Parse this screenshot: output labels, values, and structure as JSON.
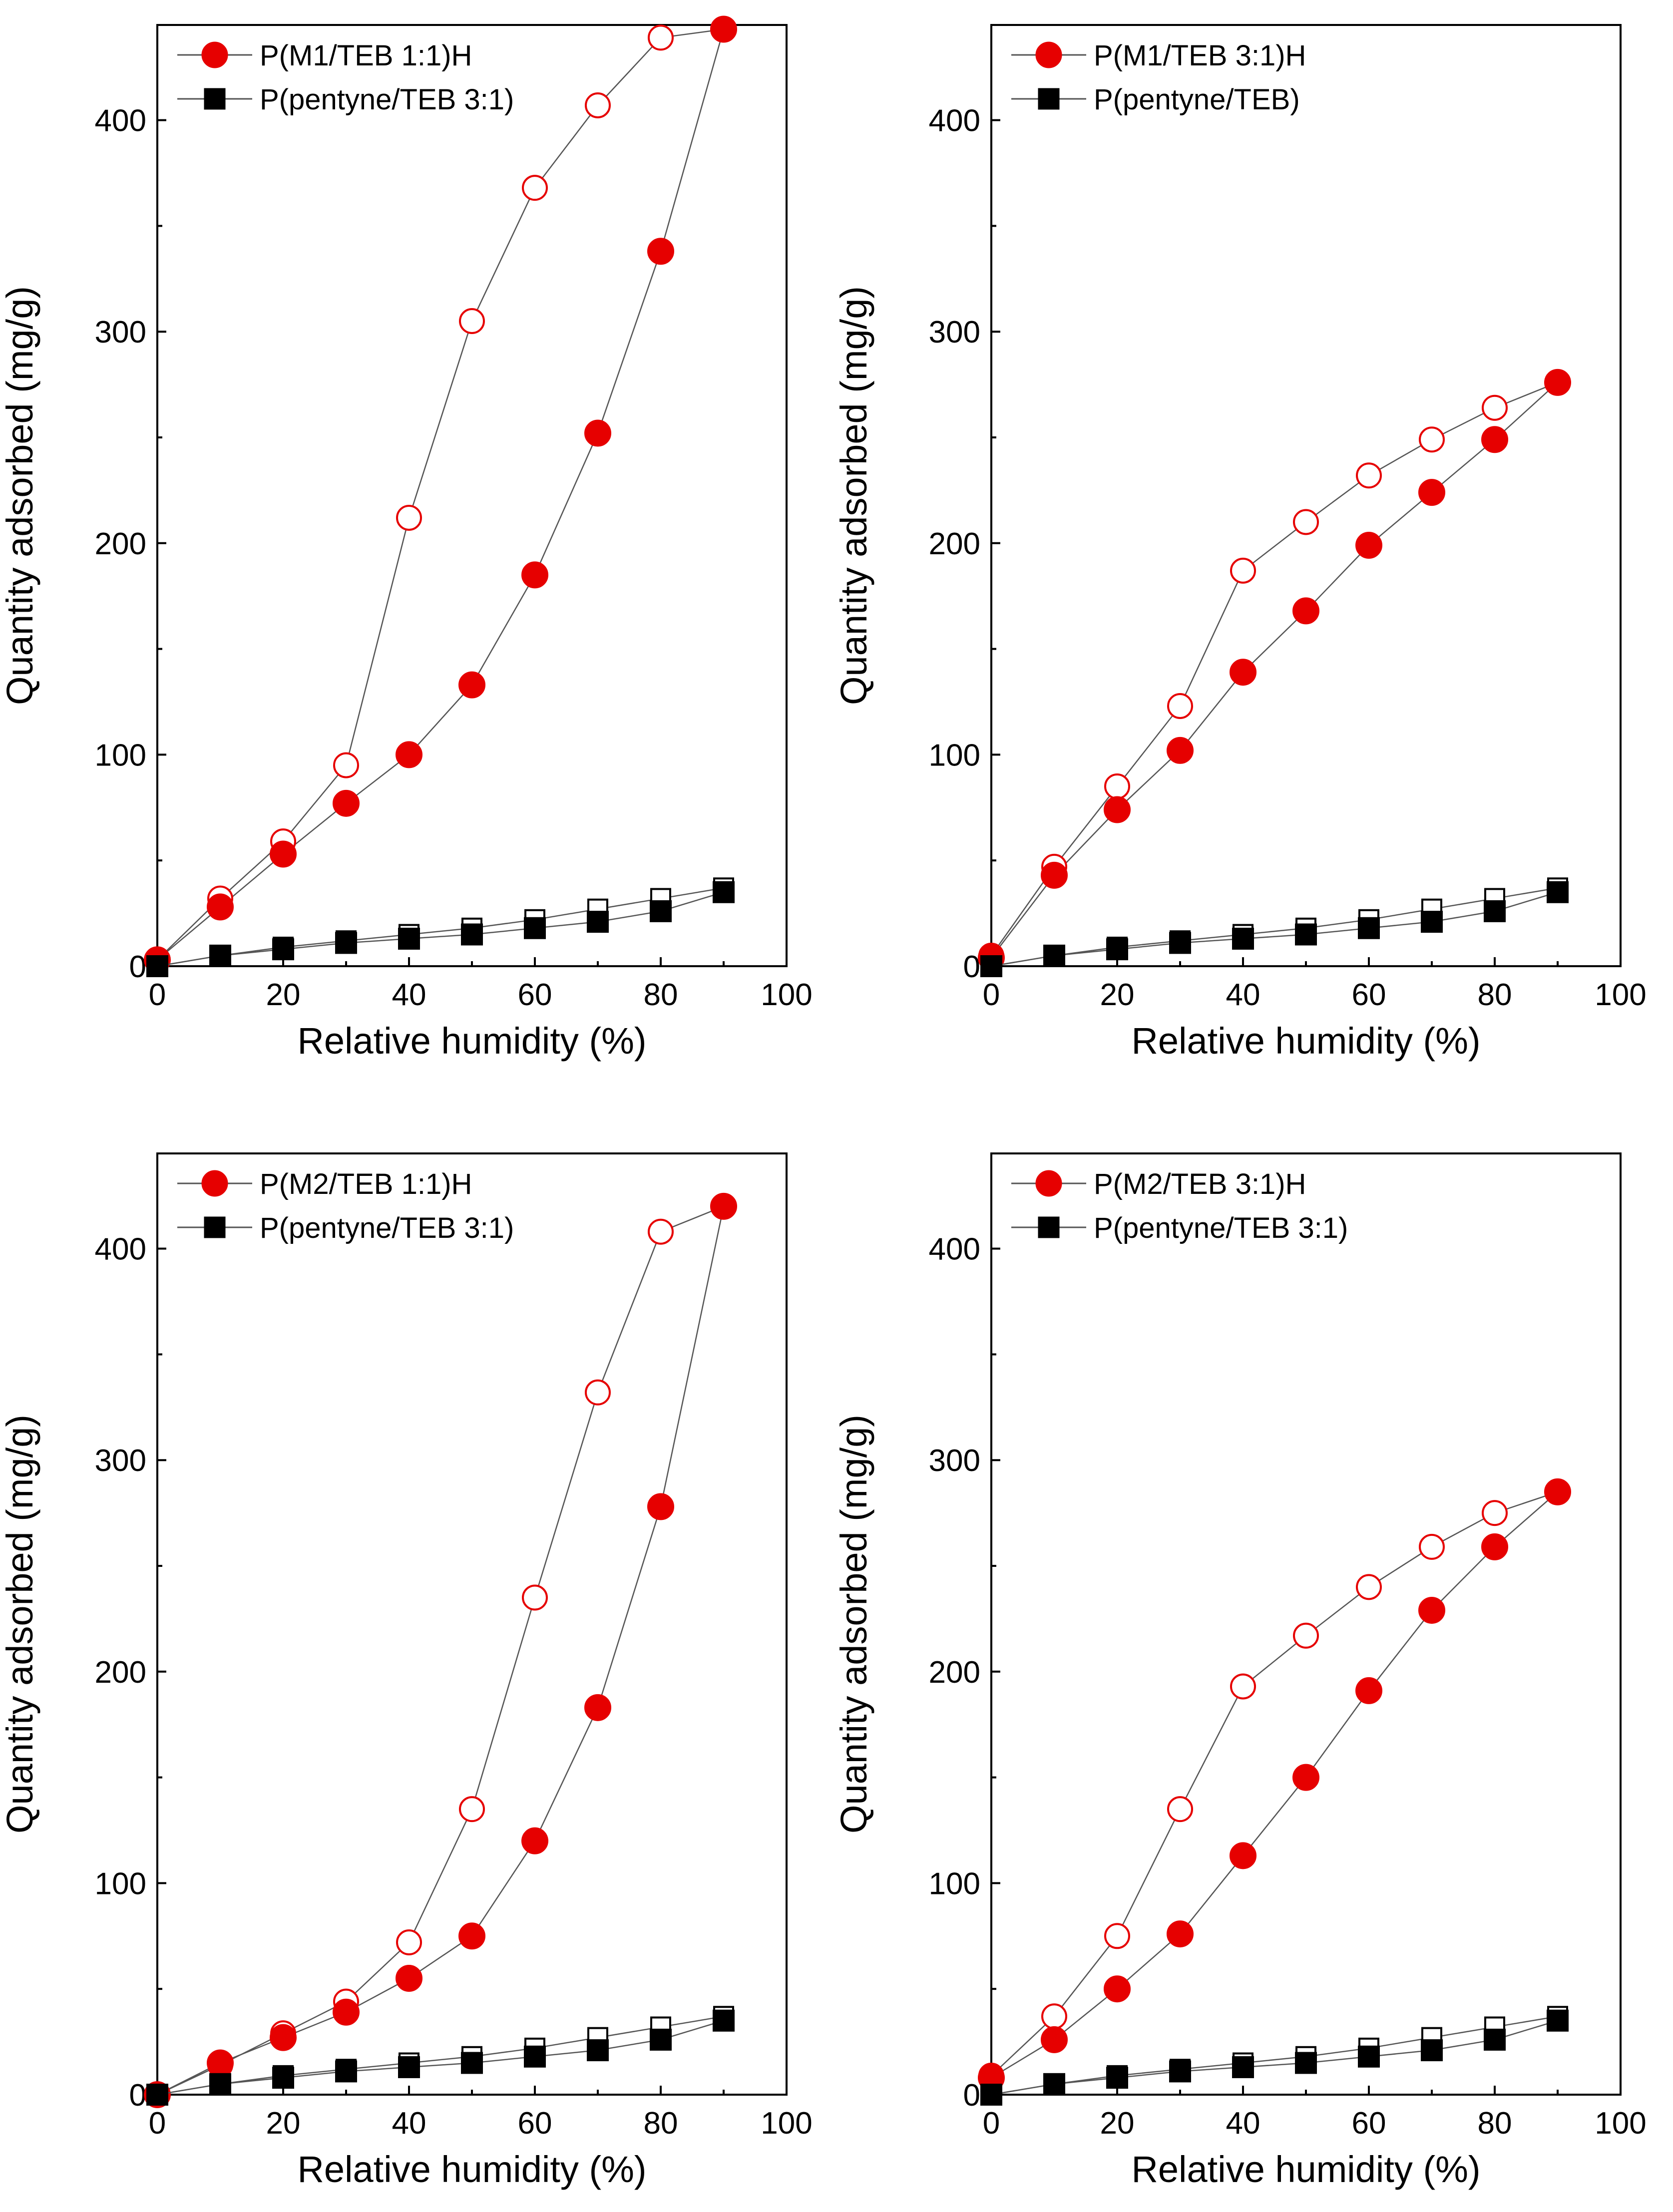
{
  "chart_data": [
    {
      "type": "scatter",
      "xlabel": "Relative humidity (%)",
      "ylabel": "Quantity adsorbed (mg/g)",
      "xlim": [
        0,
        100
      ],
      "ylim": [
        0,
        445
      ],
      "xticks": [
        0,
        20,
        40,
        60,
        80,
        100
      ],
      "yticks": [
        0,
        100,
        200,
        300,
        400
      ],
      "legend_position": "top-left",
      "series": [
        {
          "name": "P(M1/TEB 1:1)H",
          "marker": "circle",
          "color": "#e60000",
          "adsorption": {
            "x": [
              0,
              10,
              20,
              30,
              40,
              50,
              60,
              70,
              80,
              90
            ],
            "y": [
              3,
              28,
              53,
              77,
              100,
              133,
              185,
              252,
              338,
              443
            ]
          },
          "desorption": {
            "x": [
              0,
              10,
              20,
              30,
              40,
              50,
              60,
              70,
              80,
              90
            ],
            "y": [
              3,
              32,
              59,
              95,
              212,
              305,
              368,
              407,
              439,
              443
            ]
          }
        },
        {
          "name": "P(pentyne/TEB 3:1)",
          "marker": "square",
          "color": "#000000",
          "adsorption": {
            "x": [
              0,
              10,
              20,
              30,
              40,
              50,
              60,
              70,
              80,
              90
            ],
            "y": [
              0,
              5,
              8,
              11,
              13,
              15,
              18,
              21,
              26,
              35
            ]
          },
          "desorption": {
            "x": [
              0,
              10,
              20,
              30,
              40,
              50,
              60,
              70,
              80,
              90
            ],
            "y": [
              0,
              5,
              9,
              12,
              15,
              18,
              22,
              27,
              32,
              37
            ]
          }
        }
      ]
    },
    {
      "type": "scatter",
      "xlabel": "Relative humidity (%)",
      "ylabel": "Quantity adsorbed (mg/g)",
      "xlim": [
        0,
        100
      ],
      "ylim": [
        0,
        445
      ],
      "xticks": [
        0,
        20,
        40,
        60,
        80,
        100
      ],
      "yticks": [
        0,
        100,
        200,
        300,
        400
      ],
      "legend_position": "top-left",
      "series": [
        {
          "name": "P(M1/TEB 3:1)H",
          "marker": "circle",
          "color": "#e60000",
          "adsorption": {
            "x": [
              0,
              10,
              20,
              30,
              40,
              50,
              60,
              70,
              80,
              90
            ],
            "y": [
              4,
              43,
              74,
              102,
              139,
              168,
              199,
              224,
              249,
              276
            ]
          },
          "desorption": {
            "x": [
              0,
              10,
              20,
              30,
              40,
              50,
              60,
              70,
              80,
              90
            ],
            "y": [
              5,
              47,
              85,
              123,
              187,
              210,
              232,
              249,
              264,
              276
            ]
          }
        },
        {
          "name": "P(pentyne/TEB)",
          "marker": "square",
          "color": "#000000",
          "adsorption": {
            "x": [
              0,
              10,
              20,
              30,
              40,
              50,
              60,
              70,
              80,
              90
            ],
            "y": [
              0,
              5,
              8,
              11,
              13,
              15,
              18,
              21,
              26,
              35
            ]
          },
          "desorption": {
            "x": [
              0,
              10,
              20,
              30,
              40,
              50,
              60,
              70,
              80,
              90
            ],
            "y": [
              0,
              5,
              9,
              12,
              15,
              18,
              22,
              27,
              32,
              37
            ]
          }
        }
      ]
    },
    {
      "type": "scatter",
      "xlabel": "Relative humidity (%)",
      "ylabel": "Quantity adsorbed (mg/g)",
      "xlim": [
        0,
        100
      ],
      "ylim": [
        0,
        445
      ],
      "xticks": [
        0,
        20,
        40,
        60,
        80,
        100
      ],
      "yticks": [
        0,
        100,
        200,
        300,
        400
      ],
      "legend_position": "top-left",
      "series": [
        {
          "name": "P(M2/TEB 1:1)H",
          "marker": "circle",
          "color": "#e60000",
          "adsorption": {
            "x": [
              0,
              10,
              20,
              30,
              40,
              50,
              60,
              70,
              80,
              90
            ],
            "y": [
              0,
              15,
              27,
              39,
              55,
              75,
              120,
              183,
              278,
              420
            ]
          },
          "desorption": {
            "x": [
              0,
              10,
              20,
              30,
              40,
              50,
              60,
              70,
              80,
              90
            ],
            "y": [
              0,
              14,
              29,
              44,
              72,
              135,
              235,
              332,
              408,
              420
            ]
          }
        },
        {
          "name": "P(pentyne/TEB 3:1)",
          "marker": "square",
          "color": "#000000",
          "adsorption": {
            "x": [
              0,
              10,
              20,
              30,
              40,
              50,
              60,
              70,
              80,
              90
            ],
            "y": [
              0,
              5,
              8,
              11,
              13,
              15,
              18,
              21,
              26,
              35
            ]
          },
          "desorption": {
            "x": [
              0,
              10,
              20,
              30,
              40,
              50,
              60,
              70,
              80,
              90
            ],
            "y": [
              0,
              5,
              9,
              12,
              15,
              18,
              22,
              27,
              32,
              37
            ]
          }
        }
      ]
    },
    {
      "type": "scatter",
      "xlabel": "Relative humidity (%)",
      "ylabel": "Quantity adsorbed (mg/g)",
      "xlim": [
        0,
        100
      ],
      "ylim": [
        0,
        445
      ],
      "xticks": [
        0,
        20,
        40,
        60,
        80,
        100
      ],
      "yticks": [
        0,
        100,
        200,
        300,
        400
      ],
      "legend_position": "top-left",
      "series": [
        {
          "name": "P(M2/TEB 3:1)H",
          "marker": "circle",
          "color": "#e60000",
          "adsorption": {
            "x": [
              0,
              10,
              20,
              30,
              40,
              50,
              60,
              70,
              80,
              90
            ],
            "y": [
              8,
              26,
              50,
              76,
              113,
              150,
              191,
              229,
              259,
              285
            ]
          },
          "desorption": {
            "x": [
              0,
              10,
              20,
              30,
              40,
              50,
              60,
              70,
              80,
              90
            ],
            "y": [
              9,
              37,
              75,
              135,
              193,
              217,
              240,
              259,
              275,
              285
            ]
          }
        },
        {
          "name": "P(pentyne/TEB 3:1)",
          "marker": "square",
          "color": "#000000",
          "adsorption": {
            "x": [
              0,
              10,
              20,
              30,
              40,
              50,
              60,
              70,
              80,
              90
            ],
            "y": [
              0,
              5,
              8,
              11,
              13,
              15,
              18,
              21,
              26,
              35
            ]
          },
          "desorption": {
            "x": [
              0,
              10,
              20,
              30,
              40,
              50,
              60,
              70,
              80,
              90
            ],
            "y": [
              0,
              5,
              9,
              12,
              15,
              18,
              22,
              27,
              32,
              37
            ]
          }
        }
      ]
    }
  ]
}
